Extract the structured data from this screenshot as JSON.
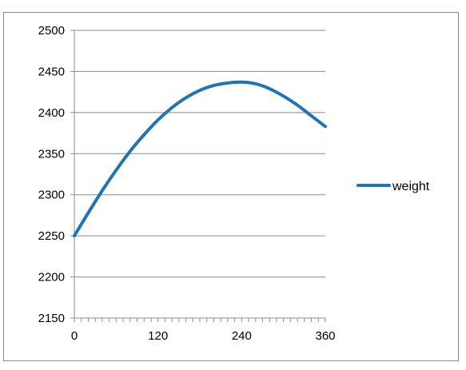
{
  "chart_data": {
    "type": "line",
    "title": "",
    "xlabel": "",
    "ylabel": "",
    "xlim": [
      0,
      360
    ],
    "ylim": [
      2150,
      2500
    ],
    "x_ticks": [
      0,
      120,
      240,
      360
    ],
    "x_tick_labels": [
      "0",
      "120",
      "240",
      "360"
    ],
    "x_minor_step": 10,
    "y_ticks": [
      2150,
      2200,
      2250,
      2300,
      2350,
      2400,
      2450,
      2500
    ],
    "y_tick_labels": [
      "2150",
      "2200",
      "2250",
      "2300",
      "2350",
      "2400",
      "2450",
      "2500"
    ],
    "grid": "horizontal major gridlines",
    "legend_position": "right",
    "series": [
      {
        "name": "weight",
        "color": "#1f74b5",
        "x": [
          0,
          20,
          40,
          60,
          80,
          100,
          120,
          140,
          160,
          180,
          200,
          220,
          240,
          260,
          280,
          300,
          320,
          340,
          360
        ],
        "y": [
          2250,
          2278,
          2305,
          2330,
          2353,
          2373,
          2391,
          2406,
          2418,
          2427,
          2433,
          2436,
          2437,
          2435,
          2429,
          2420,
          2409,
          2396,
          2383
        ]
      }
    ]
  }
}
